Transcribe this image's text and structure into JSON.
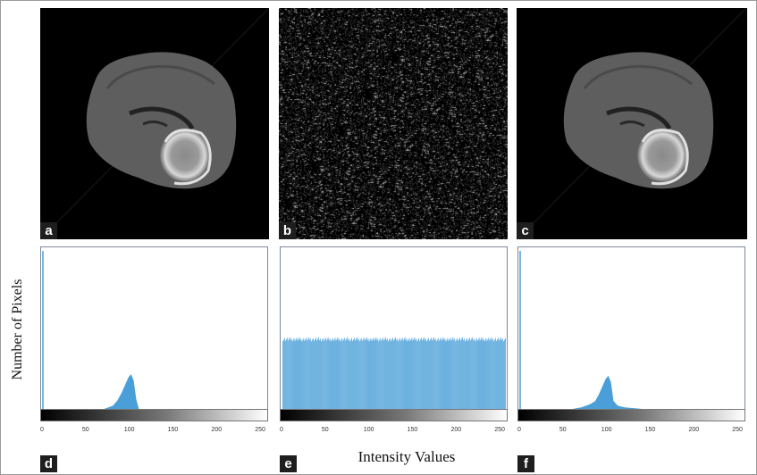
{
  "figure": {
    "ylabel": "Number of Pixels",
    "xlabel": "Intensity Values"
  },
  "panels": {
    "a": {
      "label": "a"
    },
    "b": {
      "label": "b"
    },
    "c": {
      "label": "c"
    },
    "d": {
      "label": "d"
    },
    "e": {
      "label": "e"
    },
    "f": {
      "label": "f"
    }
  },
  "chart_data": [
    {
      "type": "area",
      "panel": "d",
      "xticks": [
        "0",
        "50",
        "100",
        "150",
        "200",
        "250"
      ],
      "xlim": [
        0,
        255
      ],
      "x": [
        70,
        80,
        85,
        90,
        94,
        98,
        101,
        104,
        107,
        110
      ],
      "y": [
        0.0,
        0.02,
        0.05,
        0.1,
        0.15,
        0.2,
        0.22,
        0.18,
        0.06,
        0.0
      ],
      "ylim": [
        0,
        1
      ],
      "spike_at_zero": 1.0,
      "color": "#4a9fd8"
    },
    {
      "type": "bar",
      "panel": "e",
      "xticks": [
        "0",
        "50",
        "100",
        "150",
        "200",
        "250"
      ],
      "xlim": [
        0,
        255
      ],
      "uniform_level": 0.44,
      "ylim": [
        0,
        1
      ],
      "color": "#4a9fd8"
    },
    {
      "type": "area",
      "panel": "f",
      "xticks": [
        "0",
        "50",
        "100",
        "150",
        "200",
        "250"
      ],
      "xlim": [
        0,
        255
      ],
      "x": [
        60,
        70,
        80,
        86,
        90,
        94,
        98,
        101,
        104,
        107,
        112,
        120,
        140
      ],
      "y": [
        0.0,
        0.01,
        0.03,
        0.05,
        0.09,
        0.14,
        0.19,
        0.21,
        0.17,
        0.05,
        0.02,
        0.01,
        0.0
      ],
      "ylim": [
        0,
        1
      ],
      "spike_at_zero": 1.0,
      "color": "#4a9fd8"
    }
  ]
}
